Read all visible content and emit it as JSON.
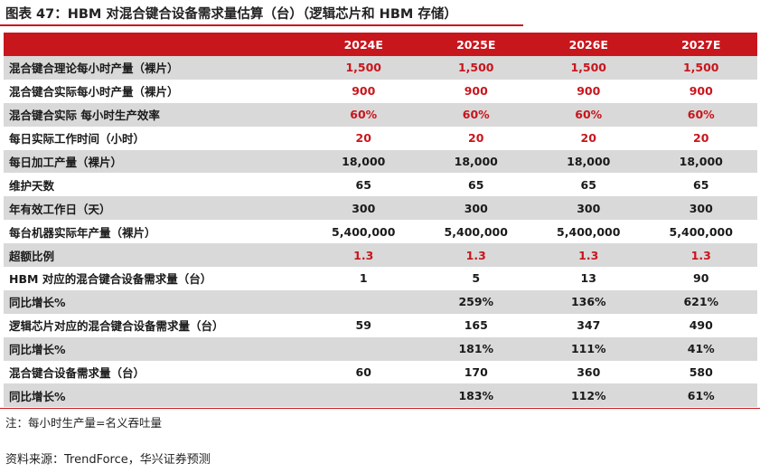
{
  "title": "图表 47：HBM 对混合键合设备需求量估算（台）（逻辑芯片和 HBM 存储）",
  "table": {
    "headers": [
      "",
      "2024E",
      "2025E",
      "2026E",
      "2027E"
    ],
    "rows": [
      {
        "label": "混合键合理论每小时产量（裸片）",
        "values": [
          "1,500",
          "1,500",
          "1,500",
          "1,500"
        ],
        "red": true
      },
      {
        "label": "混合键合实际每小时产量（裸片）",
        "values": [
          "900",
          "900",
          "900",
          "900"
        ],
        "red": true
      },
      {
        "label": "混合键合实际 每小时生产效率",
        "values": [
          "60%",
          "60%",
          "60%",
          "60%"
        ],
        "red": true
      },
      {
        "label": "每日实际工作时间（小时）",
        "values": [
          "20",
          "20",
          "20",
          "20"
        ],
        "red": true
      },
      {
        "label": "每日加工产量（裸片）",
        "values": [
          "18,000",
          "18,000",
          "18,000",
          "18,000"
        ],
        "red": false
      },
      {
        "label": "维护天数",
        "values": [
          "65",
          "65",
          "65",
          "65"
        ],
        "red": false
      },
      {
        "label": "年有效工作日（天）",
        "values": [
          "300",
          "300",
          "300",
          "300"
        ],
        "red": false
      },
      {
        "label": "每台机器实际年产量（裸片）",
        "values": [
          "5,400,000",
          "5,400,000",
          "5,400,000",
          "5,400,000"
        ],
        "red": false
      },
      {
        "label": "超额比例",
        "values": [
          "1.3",
          "1.3",
          "1.3",
          "1.3"
        ],
        "red": true
      },
      {
        "label": "HBM 对应的混合键合设备需求量（台）",
        "values": [
          "1",
          "5",
          "13",
          "90"
        ],
        "red": false
      },
      {
        "label": "同比增长%",
        "values": [
          "",
          "259%",
          "136%",
          "621%"
        ],
        "red": false
      },
      {
        "label": "逻辑芯片对应的混合键合设备需求量（台）",
        "values": [
          "59",
          "165",
          "347",
          "490"
        ],
        "red": false
      },
      {
        "label": "同比增长%",
        "values": [
          "",
          "181%",
          "111%",
          "41%"
        ],
        "red": false
      },
      {
        "label": "混合键合设备需求量（台）",
        "values": [
          "60",
          "170",
          "360",
          "580"
        ],
        "red": false
      },
      {
        "label": "同比增长%",
        "values": [
          "",
          "183%",
          "112%",
          "61%"
        ],
        "red": false
      }
    ]
  },
  "note": "注：每小时生产量=名义吞吐量",
  "source": "资料来源：TrendForce，华兴证券预测",
  "colors": {
    "accent": "#c8161d",
    "band": "#d9d9d9"
  }
}
